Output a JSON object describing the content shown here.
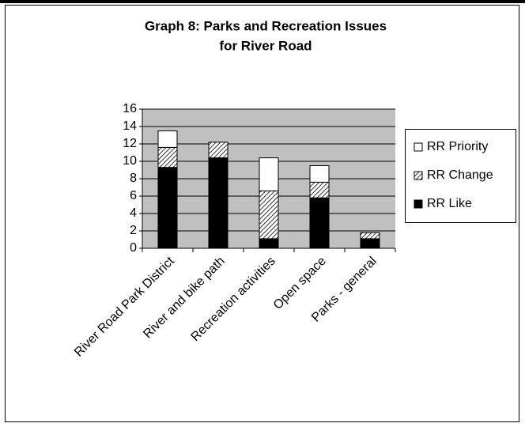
{
  "chart_data": {
    "type": "stacked_bar",
    "title": [
      "Graph 8: Parks and Recreation Issues",
      "for River Road"
    ],
    "categories": [
      "River Road Park District",
      "River and bike path",
      "Recreation activities",
      "Open space",
      "Parks - general"
    ],
    "series": [
      {
        "name": "RR Like",
        "color": "#000000",
        "values": [
          9.3,
          10.4,
          1.1,
          5.8,
          1.1
        ]
      },
      {
        "name": "RR Change",
        "color": "#ffffff",
        "pattern": "hatch",
        "values": [
          2.3,
          1.8,
          5.5,
          1.8,
          0.7
        ]
      },
      {
        "name": "RR Priority",
        "color": "#ffffff",
        "values": [
          1.9,
          0,
          3.8,
          1.9,
          0
        ]
      }
    ],
    "ylim": [
      0,
      16
    ],
    "yticks": [
      0,
      2,
      4,
      6,
      8,
      10,
      12,
      14,
      16
    ],
    "grid": true,
    "legend": "right"
  }
}
